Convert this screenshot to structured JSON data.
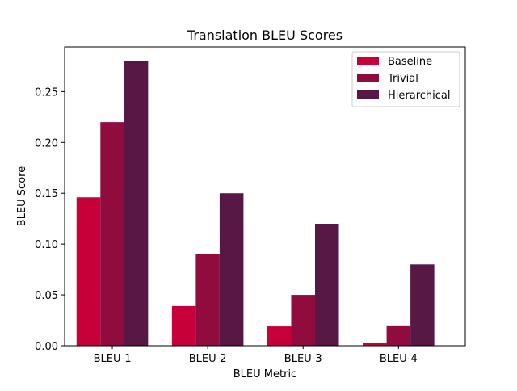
{
  "chart_data": {
    "type": "bar",
    "title": "Translation BLEU Scores",
    "xlabel": "BLEU Metric",
    "ylabel": "BLEU Score",
    "categories": [
      "BLEU-1",
      "BLEU-2",
      "BLEU-3",
      "BLEU-4"
    ],
    "series": [
      {
        "name": "Baseline",
        "color": "#c70039",
        "values": [
          0.146,
          0.039,
          0.019,
          0.003
        ]
      },
      {
        "name": "Trivial",
        "color": "#900c3f",
        "values": [
          0.22,
          0.09,
          0.05,
          0.02
        ]
      },
      {
        "name": "Hierarchical",
        "color": "#581845",
        "values": [
          0.28,
          0.15,
          0.12,
          0.08
        ]
      }
    ],
    "ylim": [
      0,
      0.294
    ],
    "yticks": [
      "0.00",
      "0.05",
      "0.10",
      "0.15",
      "0.20",
      "0.25"
    ],
    "grid": false,
    "legend_position": "top-right"
  }
}
